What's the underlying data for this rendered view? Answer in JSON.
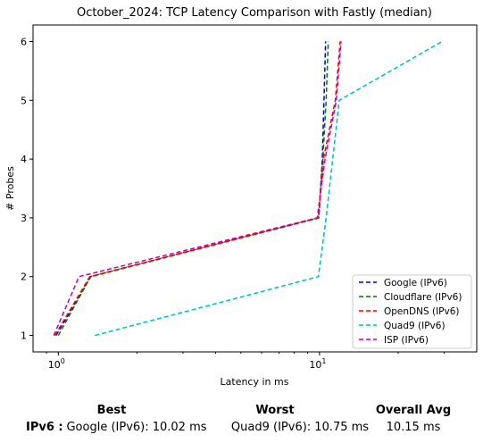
{
  "chart_data": {
    "type": "line",
    "title": "October_2024: TCP Latency Comparison with Fastly (median)",
    "xlabel": "Latency in ms",
    "ylabel": "# Probes",
    "x_scale": "log",
    "xlim": [
      0.8,
      40
    ],
    "ylim": [
      0.72,
      6.28
    ],
    "x_ticks": [
      {
        "value": 1,
        "label": "10^0"
      },
      {
        "value": 10,
        "label": "10^1"
      }
    ],
    "y_ticks": [
      1,
      2,
      3,
      4,
      5,
      6
    ],
    "legend_position": "lower-right",
    "grid": false,
    "series": [
      {
        "name": "Google (IPv6)",
        "color": "#0000cc",
        "style": "dashed",
        "x": [
          0.98,
          1.33,
          9.95,
          10.25,
          10.4,
          10.55
        ],
        "y": [
          1,
          2,
          3,
          4,
          5,
          6
        ]
      },
      {
        "name": "Cloudflare (IPv6)",
        "color": "#007700",
        "style": "dashed",
        "x": [
          1.0,
          1.33,
          9.9,
          10.3,
          10.6,
          10.8
        ],
        "y": [
          1,
          2,
          3,
          4,
          5,
          6
        ]
      },
      {
        "name": "OpenDNS (IPv6)",
        "color": "#ff0000",
        "style": "dashed",
        "x": [
          0.97,
          1.32,
          9.9,
          10.35,
          11.5,
          12.0
        ],
        "y": [
          1,
          2,
          3,
          4,
          5,
          6
        ]
      },
      {
        "name": "Quad9 (IPv6)",
        "color": "#00bfbf",
        "style": "dashed",
        "x": [
          1.38,
          9.9,
          10.6,
          11.9,
          29.5
        ],
        "y": [
          1,
          2,
          3,
          5,
          6
        ]
      },
      {
        "name": "ISP (IPv6)",
        "color": "#bf00bf",
        "style": "dashed",
        "x": [
          0.96,
          1.2,
          9.8,
          10.5,
          11.6,
          12.1
        ],
        "y": [
          1,
          2,
          3,
          4,
          5,
          6
        ]
      }
    ]
  },
  "summary": {
    "headers": {
      "best": "Best",
      "worst": "Worst",
      "avg": "Overall Avg"
    },
    "row_label": "IPv6 :",
    "best": "Google (IPv6): 10.02 ms",
    "worst": "Quad9 (IPv6): 10.75 ms",
    "avg": "10.15 ms"
  }
}
